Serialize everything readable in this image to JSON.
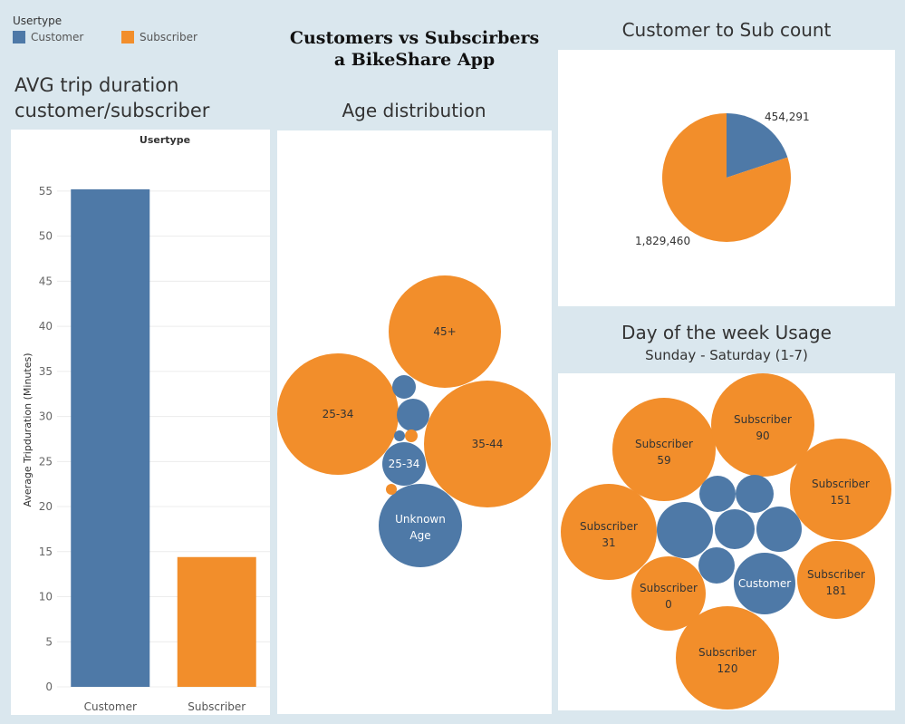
{
  "legend": {
    "title": "Usertype",
    "items": [
      {
        "label": "Customer",
        "color": "#4e79a7"
      },
      {
        "label": "Subscriber",
        "color": "#f28e2b"
      }
    ]
  },
  "dashboard": {
    "title_line1": "Customers vs Subscirbers",
    "title_line2": "a BikeShare App"
  },
  "panels": {
    "avg_title_line1": "AVG trip duration",
    "avg_title_line2": "customer/subscriber",
    "age_title": "Age distribution",
    "count_title": "Customer to Sub count",
    "week_title": "Day of the week Usage",
    "week_subtitle": "Sunday - Saturday (1-7)"
  },
  "chart_data": [
    {
      "type": "bar",
      "header": "Usertype",
      "categories": [
        "Customer",
        "Subscriber"
      ],
      "values": [
        55.2,
        14.4
      ],
      "colors": [
        "#4e79a7",
        "#f28e2b"
      ],
      "ylabel": "Average Tripduration (Minutes)",
      "ylim": [
        0,
        57
      ],
      "yticks": [
        0,
        5,
        10,
        15,
        20,
        25,
        30,
        35,
        40,
        45,
        50,
        55
      ]
    },
    {
      "type": "bubble",
      "bubbles": [
        {
          "label": "45+",
          "type": "Subscriber"
        },
        {
          "label": "25-34",
          "type": "Subscriber"
        },
        {
          "label": "35-44",
          "type": "Subscriber"
        },
        {
          "label": "25-34",
          "type": "Customer"
        },
        {
          "label": "Unknown Age",
          "type": "Customer"
        },
        {
          "label": "",
          "type": "Customer"
        },
        {
          "label": "",
          "type": "Customer"
        },
        {
          "label": "",
          "type": "Customer"
        },
        {
          "label": "",
          "type": "Subscriber"
        },
        {
          "label": "",
          "type": "Subscriber"
        }
      ]
    },
    {
      "type": "pie",
      "labels": [
        "Customer",
        "Subscriber"
      ],
      "values": [
        454291,
        1829460
      ],
      "value_labels": [
        "454,291",
        "1,829,460"
      ],
      "colors": [
        "#4e79a7",
        "#f28e2b"
      ]
    },
    {
      "type": "bubble",
      "bubbles": [
        {
          "line1": "Subscriber",
          "line2": "59",
          "type": "Subscriber"
        },
        {
          "line1": "Subscriber",
          "line2": "90",
          "type": "Subscriber"
        },
        {
          "line1": "Subscriber",
          "line2": "151",
          "type": "Subscriber"
        },
        {
          "line1": "Subscriber",
          "line2": "31",
          "type": "Subscriber"
        },
        {
          "line1": "Subscriber",
          "line2": "181",
          "type": "Subscriber"
        },
        {
          "line1": "Subscriber",
          "line2": "0",
          "type": "Subscriber"
        },
        {
          "line1": "Subscriber",
          "line2": "120",
          "type": "Subscriber"
        },
        {
          "line1": "Customer",
          "line2": "",
          "type": "Customer"
        },
        {
          "line1": "",
          "line2": "",
          "type": "Customer"
        },
        {
          "line1": "",
          "line2": "",
          "type": "Customer"
        },
        {
          "line1": "",
          "line2": "",
          "type": "Customer"
        },
        {
          "line1": "",
          "line2": "",
          "type": "Customer"
        },
        {
          "line1": "",
          "line2": "",
          "type": "Customer"
        },
        {
          "line1": "",
          "line2": "",
          "type": "Customer"
        }
      ]
    }
  ]
}
